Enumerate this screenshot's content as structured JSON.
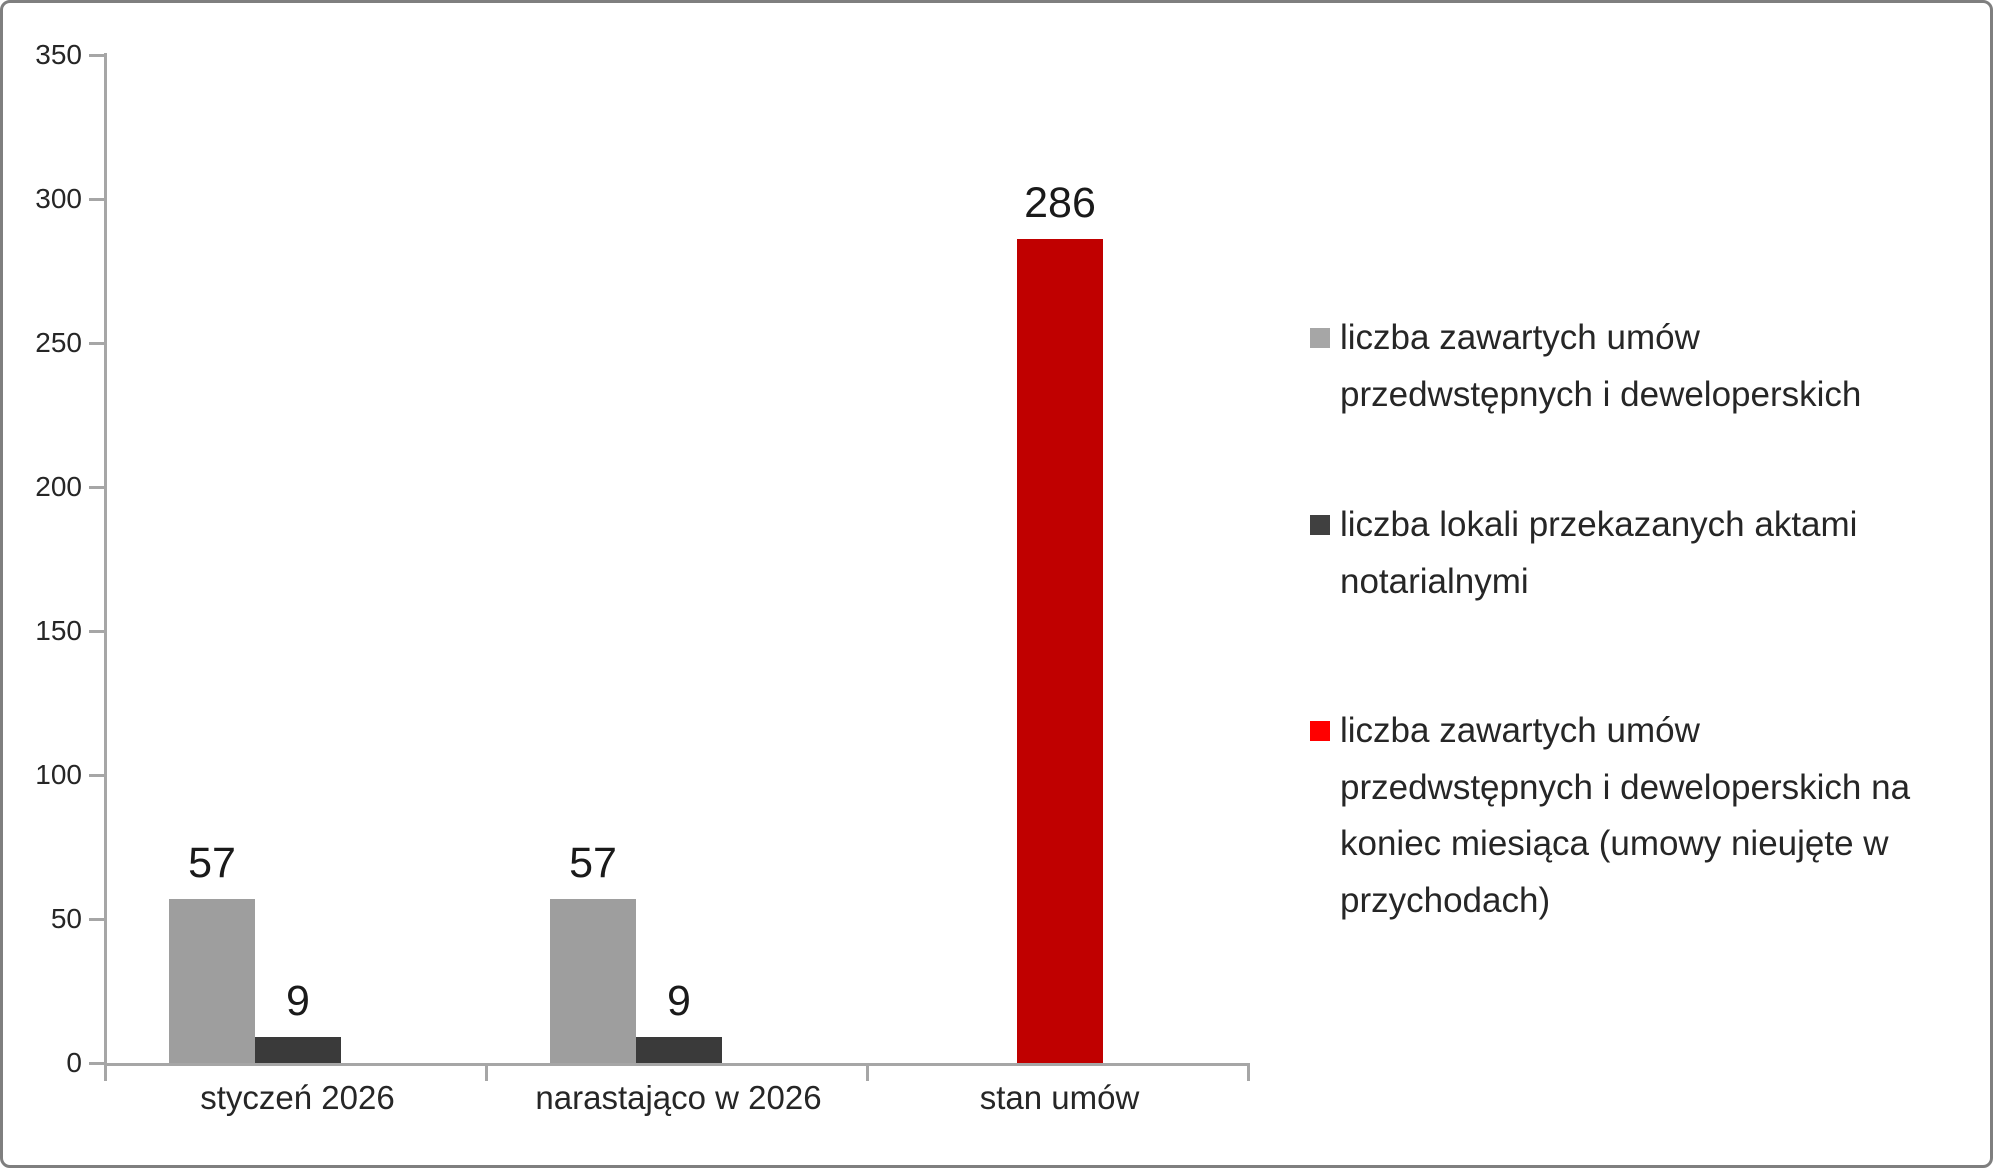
{
  "chart_data": {
    "type": "bar",
    "title": "",
    "categories": [
      "styczeń 2026",
      "narastająco w 2026",
      "stan umów"
    ],
    "series": [
      {
        "name": "liczba zawartych umów przedwstępnych i deweloperskich",
        "legend_lines": [
          "liczba zawartych umów",
          "przedwstępnych i deweloperskich"
        ],
        "color": "#9e9e9e",
        "legend_color": "#a6a6a6",
        "values": [
          57,
          57,
          null
        ],
        "data_labels": [
          "57",
          "57",
          ""
        ]
      },
      {
        "name": "liczba lokali przekazanych aktami notarialnymi",
        "legend_lines": [
          "liczba lokali przekazanych aktami",
          "notarialnymi"
        ],
        "color": "#3a3a3a",
        "legend_color": "#404040",
        "values": [
          9,
          9,
          null
        ],
        "data_labels": [
          "9",
          "9",
          ""
        ]
      },
      {
        "name": "liczba zawartych umów przedwstępnych i deweloperskich na koniec miesiąca (umowy nieujęte w przychodach)",
        "legend_lines": [
          "liczba zawartych umów",
          "przedwstępnych i deweloperskich na",
          "koniec miesiąca (umowy nieujęte w",
          "przychodach)"
        ],
        "color": "#c00000",
        "legend_color": "#ff0000",
        "values": [
          null,
          null,
          286
        ],
        "data_labels": [
          "",
          "",
          "286"
        ]
      }
    ],
    "ylim": [
      0,
      350
    ],
    "yticks": [
      0,
      50,
      100,
      150,
      200,
      250,
      300,
      350
    ],
    "grid": false,
    "legend_position": "right",
    "axis_color": "#a6a6a6",
    "text_color": "#262626"
  }
}
